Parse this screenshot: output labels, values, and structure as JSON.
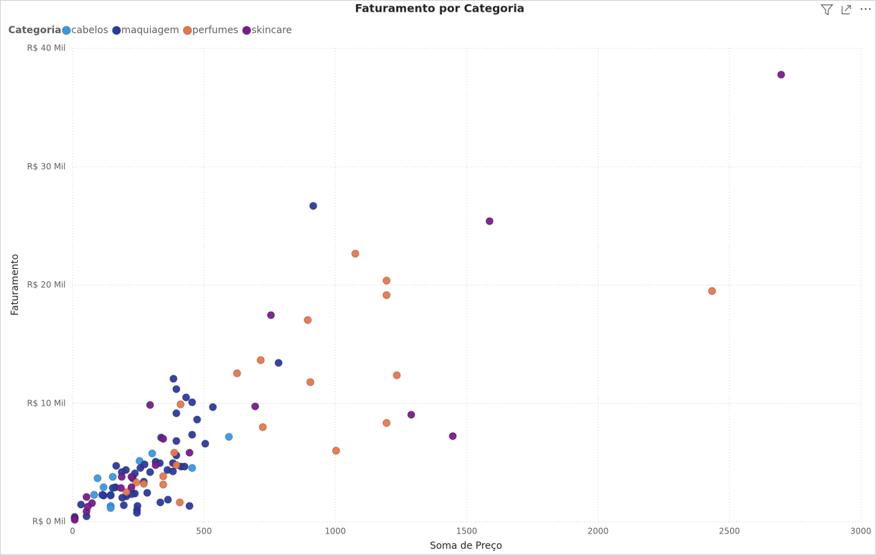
{
  "chart_data": {
    "type": "scatter",
    "title": "Faturamento por Categoria",
    "legend_title": "Categoria",
    "x_label": "Soma de Preço",
    "y_label": "Faturamento",
    "xlim": [
      0,
      3000
    ],
    "xticks": [
      0,
      500,
      1000,
      1500,
      2000,
      2500,
      3000
    ],
    "ylim": [
      0,
      40000
    ],
    "yticks": [
      {
        "value": 0,
        "label": "R$ 0 Mil"
      },
      {
        "value": 10000,
        "label": "R$ 10 Mil"
      },
      {
        "value": 20000,
        "label": "R$ 20 Mil"
      },
      {
        "value": 30000,
        "label": "R$ 30 Mil"
      },
      {
        "value": 40000,
        "label": "R$ 40 Mil"
      }
    ],
    "grid": true,
    "legend": "top-left",
    "series": [
      {
        "name": "cabelos",
        "color": "#3599e8",
        "x": [
          595,
          303,
          455,
          255,
          95,
          82,
          153,
          145,
          145,
          145,
          118
        ],
        "values": [
          7180,
          5780,
          4550,
          5140,
          3680,
          2280,
          3800,
          2280,
          1340,
          1170,
          2920
        ]
      },
      {
        "name": "maquiagem",
        "color": "#2b3a9e",
        "x": [
          916,
          784,
          384,
          395,
          432,
          455,
          534,
          395,
          474,
          455,
          337,
          395,
          505,
          395,
          361,
          382,
          295,
          258,
          274,
          316,
          332,
          382,
          413,
          426,
          237,
          203,
          166,
          187,
          229,
          271,
          163,
          153,
          145,
          205,
          189,
          284,
          237,
          224,
          118,
          113,
          363,
          195,
          334,
          247,
          445,
          245,
          245,
          32,
          53,
          8
        ],
        "values": [
          26690,
          13430,
          12090,
          11210,
          10510,
          10100,
          9690,
          9170,
          8640,
          7360,
          7120,
          6830,
          6600,
          5610,
          4380,
          4260,
          4200,
          4550,
          4850,
          5080,
          4960,
          4960,
          4670,
          4670,
          4090,
          4380,
          4730,
          4200,
          3680,
          3390,
          2920,
          2860,
          2220,
          2160,
          2040,
          2450,
          2390,
          2340,
          2220,
          2280,
          1870,
          1400,
          1640,
          1340,
          1340,
          990,
          760,
          1460,
          470,
          410
        ]
      },
      {
        "name": "perfumes",
        "color": "#e8764a",
        "x": [
          2434,
          1076,
          1195,
          1195,
          895,
          1234,
          905,
          1195,
          1003,
          716,
          626,
          724,
          411,
          387,
          395,
          345,
          345,
          408,
          271,
          242,
          205
        ],
        "values": [
          19500,
          22660,
          20380,
          19150,
          17050,
          12380,
          11800,
          8350,
          6010,
          13660,
          12550,
          8000,
          9930,
          5840,
          4790,
          3850,
          3150,
          1640,
          3210,
          3330,
          2510
        ]
      },
      {
        "name": "skincare",
        "color": "#7a1a8c",
        "x": [
          2697,
          1587,
          755,
          1289,
          1447,
          695,
          295,
          345,
          445,
          8,
          8,
          53,
          53,
          74,
          187,
          184,
          224,
          316,
          224,
          58
        ],
        "values": [
          37780,
          25400,
          17460,
          9050,
          7240,
          9750,
          9870,
          7010,
          5840,
          290,
          175,
          2100,
          880,
          1580,
          3800,
          2860,
          2920,
          4790,
          3800,
          1280
        ]
      }
    ]
  }
}
